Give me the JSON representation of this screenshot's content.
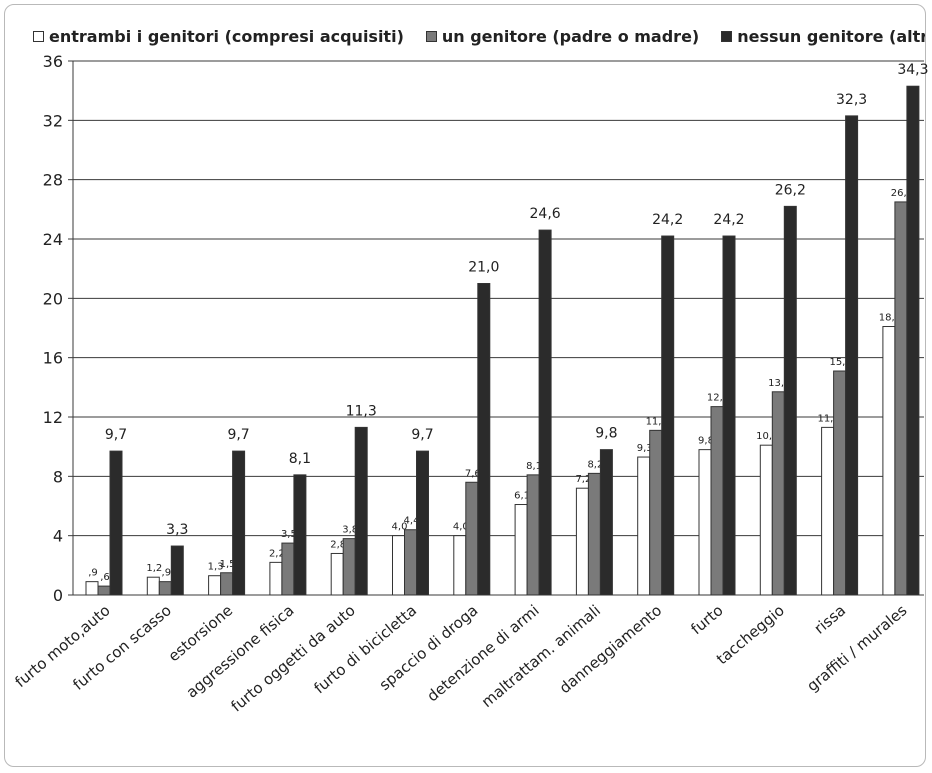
{
  "chart_data": {
    "type": "bar",
    "title": "",
    "xlabel": "",
    "ylabel": "",
    "ylim": [
      0,
      36
    ],
    "yticks": [
      0,
      4,
      8,
      12,
      16,
      20,
      24,
      28,
      32,
      36
    ],
    "grid": true,
    "legend_position": "top",
    "categories": [
      "furto moto,auto",
      "furto con scasso",
      "estorsione",
      "aggressione fisica",
      "furto oggetti da auto",
      "furto di bicicletta",
      "spaccio di droga",
      "detenzione di armi",
      "maltrattam. animali",
      "danneggiamento",
      "furto",
      "taccheggio",
      "rissa",
      "graffiti / murales"
    ],
    "series": [
      {
        "name": "entrambi i genitori (compresi acquisiti)",
        "color": "#ffffff",
        "values": [
          0.9,
          1.2,
          1.3,
          2.2,
          2.8,
          4.0,
          4.0,
          6.1,
          7.2,
          9.3,
          9.8,
          10.1,
          11.3,
          18.1
        ],
        "labels": [
          ",9",
          "1,2",
          "1,3",
          "2,2",
          "2,8",
          "4,0",
          "4,0",
          "6,1",
          "7,2",
          "9,3",
          "9,8",
          "10,1",
          "11,3",
          "18,1"
        ]
      },
      {
        "name": "un genitore (padre o madre)",
        "color": "#7a7a7a",
        "values": [
          0.6,
          0.9,
          1.5,
          3.5,
          3.8,
          4.4,
          7.6,
          8.1,
          8.2,
          11.1,
          12.7,
          13.7,
          15.1,
          26.5
        ],
        "labels": [
          ",6",
          ",9",
          "1,5",
          "3,5",
          "3,8",
          "4,4",
          "7,6",
          "8,1",
          "8,2",
          "11,1",
          "12,7",
          "13,7",
          "15,1",
          "26,5"
        ]
      },
      {
        "name": "nessun genitore (altri)",
        "color": "#2b2b2b",
        "values": [
          9.7,
          3.3,
          9.7,
          8.1,
          11.3,
          9.7,
          21.0,
          24.6,
          9.8,
          24.2,
          24.2,
          26.2,
          32.3,
          34.3
        ],
        "labels": [
          "9,7",
          "3,3",
          "9,7",
          "8,1",
          "11,3",
          "9,7",
          "21,0",
          "24,6",
          "9,8",
          "24,2",
          "24,2",
          "26,2",
          "32,3",
          "34,3"
        ]
      }
    ]
  }
}
